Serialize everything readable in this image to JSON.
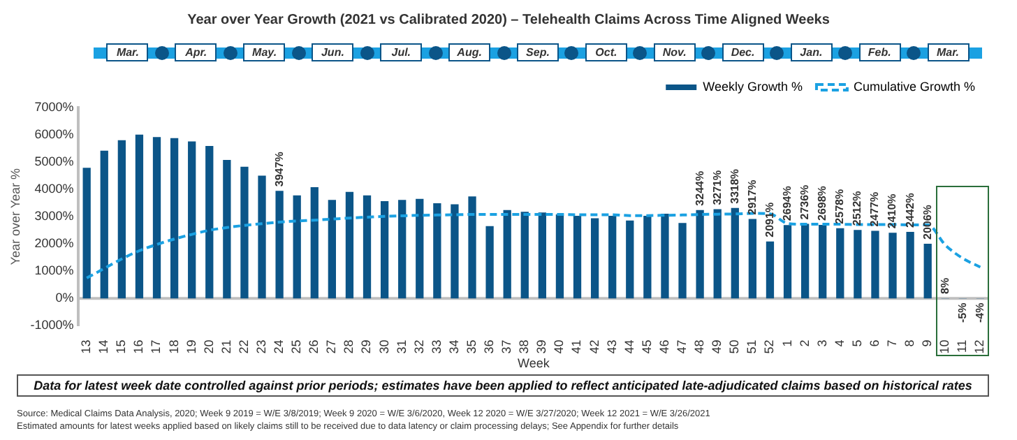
{
  "chart_data": {
    "type": "bar",
    "title": "Year over Year Growth (2021 vs Calibrated 2020) – Telehealth Claims Across Time Aligned Weeks",
    "xlabel": "Week",
    "ylabel": "Year over Year %",
    "categories": [
      "13",
      "14",
      "15",
      "16",
      "17",
      "18",
      "19",
      "20",
      "21",
      "22",
      "23",
      "24",
      "25",
      "26",
      "27",
      "28",
      "29",
      "30",
      "31",
      "32",
      "33",
      "34",
      "35",
      "36",
      "37",
      "38",
      "39",
      "40",
      "41",
      "42",
      "43",
      "44",
      "45",
      "46",
      "47",
      "48",
      "49",
      "50",
      "51",
      "52",
      "1",
      "2",
      "3",
      "4",
      "5",
      "6",
      "7",
      "8",
      "9",
      "10",
      "11",
      "12"
    ],
    "series": [
      {
        "name": "Weekly Growth %",
        "color": "#0b5588",
        "values": [
          4790,
          5420,
          5800,
          6010,
          5920,
          5880,
          5760,
          5590,
          5080,
          4830,
          4500,
          3947,
          3780,
          4080,
          3610,
          3910,
          3780,
          3570,
          3610,
          3650,
          3490,
          3450,
          3740,
          2650,
          3240,
          3180,
          3150,
          3080,
          3030,
          2940,
          3030,
          2860,
          3030,
          3110,
          2770,
          3244,
          3271,
          3318,
          2917,
          2091,
          2694,
          2736,
          2698,
          2578,
          2512,
          2477,
          2410,
          2442,
          2006,
          8,
          -5,
          -4
        ],
        "value_labels": [
          null,
          null,
          null,
          null,
          null,
          null,
          null,
          null,
          null,
          null,
          null,
          "3947%",
          null,
          null,
          null,
          null,
          null,
          null,
          null,
          null,
          null,
          null,
          null,
          null,
          null,
          null,
          null,
          null,
          null,
          null,
          null,
          null,
          null,
          null,
          null,
          "3244%",
          "3271%",
          "3318%",
          "2917%",
          "2091%",
          "2694%",
          "2736%",
          "2698%",
          "2578%",
          "2512%",
          "2477%",
          "2410%",
          "2442%",
          "2006%",
          "8%",
          "-5%",
          "-4%"
        ]
      },
      {
        "name": "Cumulative Growth %",
        "type": "line",
        "color": "#1ba1e2",
        "line_style": "dashed",
        "marker": "none",
        "values": [
          750,
          1100,
          1450,
          1750,
          1980,
          2180,
          2350,
          2500,
          2600,
          2680,
          2740,
          2800,
          2840,
          2870,
          2910,
          2950,
          2980,
          3010,
          3030,
          3050,
          3060,
          3070,
          3080,
          3080,
          3080,
          3080,
          3080,
          3080,
          3070,
          3070,
          3070,
          3040,
          3040,
          3050,
          3060,
          3080,
          3090,
          3100,
          3120,
          3100,
          2750,
          2720,
          2720,
          2720,
          2710,
          2710,
          2710,
          2700,
          2700,
          1960,
          1470,
          1150
        ]
      }
    ],
    "ylim": [
      -1000,
      7000
    ],
    "yticks": [
      {
        "value": -1000,
        "label": "-1000%"
      },
      {
        "value": 0,
        "label": "0%"
      },
      {
        "value": 1000,
        "label": "1000%"
      },
      {
        "value": 2000,
        "label": "2000%"
      },
      {
        "value": 3000,
        "label": "3000%"
      },
      {
        "value": 4000,
        "label": "4000%"
      },
      {
        "value": 5000,
        "label": "5000%"
      },
      {
        "value": 6000,
        "label": "6000%"
      },
      {
        "value": 7000,
        "label": "7000%"
      }
    ],
    "ref_lines": [
      {
        "axis": "y",
        "value": 0,
        "color": "#bfbfbf"
      }
    ],
    "grid": false,
    "legend": "top right",
    "annotations": [
      "Mar.",
      "Apr.",
      "May.",
      "Jun.",
      "Jul.",
      "Aug.",
      "Sep.",
      "Oct.",
      "Nov.",
      "Dec.",
      "Jan.",
      "Feb.",
      "Mar.",
      "Data for latest week date controlled against prior periods; estimates have been applied to reflect anticipated late-adjudicated claims based on historical rates",
      "Source: Medical Claims Data Analysis, 2020; Week 9 2019 = W/E 3/8/2019; Week 9 2020 = W/E 3/6/2020, Week 12 2020 = W/E 3/27/2020; Week 12 2021 = W/E 3/26/2021",
      "Estimated amounts for latest weeks applied based on likely claims still to be received due to data latency or claim processing delays; See Appendix for further details"
    ]
  }
}
